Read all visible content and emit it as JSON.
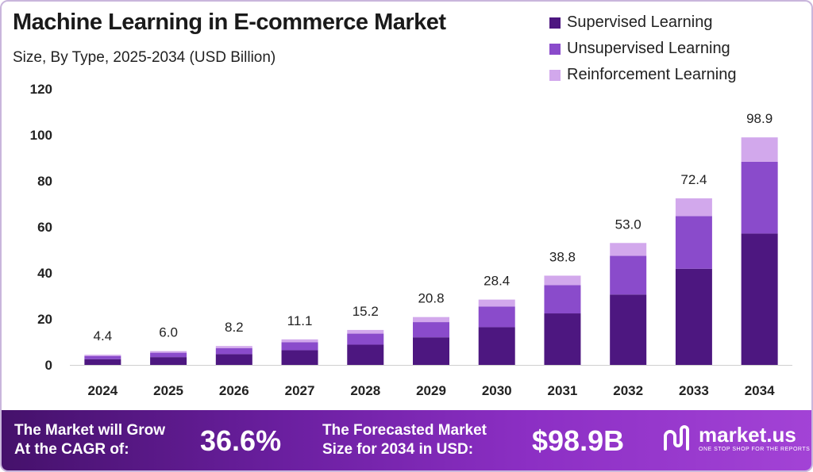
{
  "header": {
    "title": "Machine Learning in E-commerce Market",
    "subtitle": "Size, By Type, 2025-2034 (USD Billion)"
  },
  "colors": {
    "supervised": "#4d1780",
    "unsupervised": "#8a4bcb",
    "reinforcement": "#d2a8ec",
    "footer_start": "#45116b",
    "footer_end": "#a343d6"
  },
  "chart_data": {
    "type": "bar",
    "stacked": true,
    "title": "Machine Learning in E-commerce Market",
    "subtitle": "Size, By Type, 2025-2034 (USD Billion)",
    "categories": [
      "2024",
      "2025",
      "2026",
      "2027",
      "2028",
      "2029",
      "2030",
      "2031",
      "2032",
      "2033",
      "2034"
    ],
    "series": [
      {
        "name": "Supervised Learning",
        "values": [
          2.5,
          3.4,
          4.7,
          6.4,
          8.8,
          12.0,
          16.4,
          22.4,
          30.6,
          41.8,
          57.1
        ]
      },
      {
        "name": "Unsupervised Learning",
        "values": [
          1.4,
          1.9,
          2.6,
          3.5,
          4.8,
          6.6,
          9.0,
          12.3,
          16.8,
          22.9,
          31.2
        ]
      },
      {
        "name": "Reinforcement Learning",
        "values": [
          0.5,
          0.7,
          0.9,
          1.2,
          1.6,
          2.2,
          3.0,
          4.1,
          5.6,
          7.7,
          10.6
        ]
      }
    ],
    "totals": [
      "4.4",
      "6.0",
      "8.2",
      "11.1",
      "15.2",
      "20.8",
      "28.4",
      "38.8",
      "53.0",
      "72.4",
      "98.9"
    ],
    "yticks": [
      "0",
      "20",
      "40",
      "60",
      "80",
      "100",
      "120"
    ],
    "ylim": [
      0,
      120
    ],
    "grid": false,
    "legend_position": "top-right"
  },
  "footer": {
    "cagr_label_1": "The Market will Grow",
    "cagr_label_2": "At the CAGR of:",
    "cagr_value": "36.6%",
    "forecast_label_1": "The Forecasted Market",
    "forecast_label_2": "Size for 2034 in USD:",
    "forecast_value": "$98.9B",
    "brand_name": "market.us",
    "brand_tagline": "ONE STOP SHOP FOR THE REPORTS"
  }
}
